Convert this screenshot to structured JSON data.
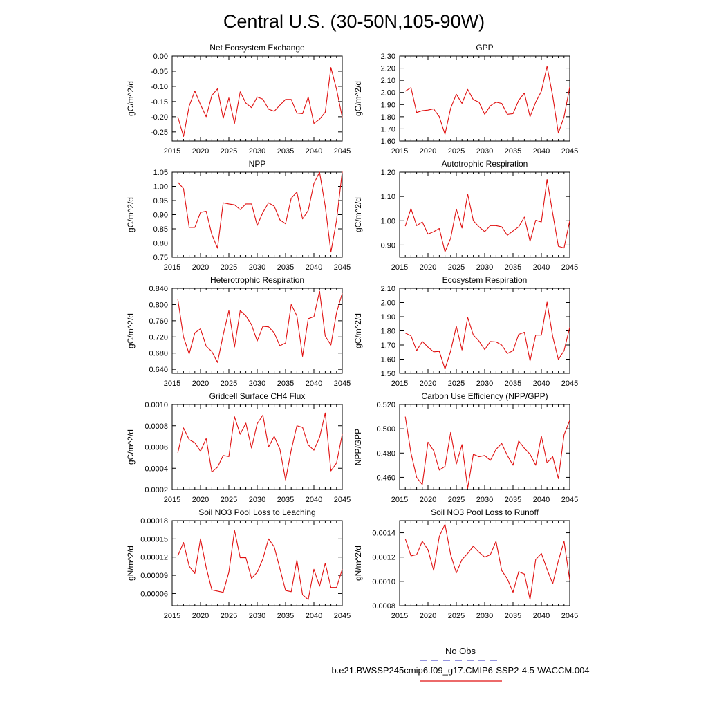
{
  "figure": {
    "title": "Central U.S. (30-50N,105-90W)",
    "legend": {
      "obs_label": "No Obs",
      "obs_color": "#5555cc",
      "case_label": "b.e21.BWSSP245cmip6.f09_g17.CMIP6-SSP2-4.5-WACCM.004",
      "case_color": "#e01010"
    }
  },
  "chart_data": [
    {
      "type": "line",
      "title": "Net Ecosystem Exchange",
      "ylabel": "gC/m^2/d",
      "x": [
        2016,
        2017,
        2018,
        2019,
        2020,
        2021,
        2022,
        2023,
        2024,
        2025,
        2026,
        2027,
        2028,
        2029,
        2030,
        2031,
        2032,
        2033,
        2034,
        2035,
        2036,
        2037,
        2038,
        2039,
        2040,
        2041,
        2042,
        2043,
        2044,
        2045
      ],
      "xlim": [
        2015,
        2045
      ],
      "xticks": [
        "2015",
        "2020",
        "2025",
        "2030",
        "2035",
        "2040",
        "2045"
      ],
      "ylim": [
        -0.28,
        0.0
      ],
      "yticks": [
        "0.00",
        "-0.05",
        "-0.10",
        "-0.15",
        "-0.20",
        "-0.25"
      ],
      "series": [
        {
          "color": "#e01010",
          "values": [
            -0.2,
            -0.265,
            -0.165,
            -0.115,
            -0.16,
            -0.2,
            -0.13,
            -0.108,
            -0.205,
            -0.138,
            -0.222,
            -0.118,
            -0.155,
            -0.17,
            -0.135,
            -0.142,
            -0.175,
            -0.182,
            -0.162,
            -0.143,
            -0.143,
            -0.188,
            -0.19,
            -0.135,
            -0.222,
            -0.208,
            -0.185,
            -0.038,
            -0.11,
            -0.202
          ]
        }
      ]
    },
    {
      "type": "line",
      "title": "GPP",
      "ylabel": "gC/m^2/d",
      "x": [
        2016,
        2017,
        2018,
        2019,
        2020,
        2021,
        2022,
        2023,
        2024,
        2025,
        2026,
        2027,
        2028,
        2029,
        2030,
        2031,
        2032,
        2033,
        2034,
        2035,
        2036,
        2037,
        2038,
        2039,
        2040,
        2041,
        2042,
        2043,
        2044,
        2045
      ],
      "xlim": [
        2015,
        2045
      ],
      "xticks": [
        "2015",
        "2020",
        "2025",
        "2030",
        "2035",
        "2040",
        "2045"
      ],
      "ylim": [
        1.6,
        2.3
      ],
      "yticks": [
        "2.30",
        "2.20",
        "2.10",
        "2.00",
        "1.90",
        "1.80",
        "1.70",
        "1.60"
      ],
      "series": [
        {
          "color": "#e01010",
          "values": [
            2.01,
            2.04,
            1.835,
            1.85,
            1.855,
            1.865,
            1.8,
            1.655,
            1.87,
            1.985,
            1.91,
            2.025,
            1.94,
            1.92,
            1.82,
            1.89,
            1.92,
            1.91,
            1.82,
            1.825,
            1.935,
            1.995,
            1.8,
            1.92,
            2.01,
            2.215,
            1.97,
            1.665,
            1.8,
            2.045
          ]
        }
      ]
    },
    {
      "type": "line",
      "title": "NPP",
      "ylabel": "gC/m^2/d",
      "x": [
        2016,
        2017,
        2018,
        2019,
        2020,
        2021,
        2022,
        2023,
        2024,
        2025,
        2026,
        2027,
        2028,
        2029,
        2030,
        2031,
        2032,
        2033,
        2034,
        2035,
        2036,
        2037,
        2038,
        2039,
        2040,
        2041,
        2042,
        2043,
        2044,
        2045
      ],
      "xlim": [
        2015,
        2045
      ],
      "xticks": [
        "2015",
        "2020",
        "2025",
        "2030",
        "2035",
        "2040",
        "2045"
      ],
      "ylim": [
        0.75,
        1.05
      ],
      "yticks": [
        "1.05",
        "1.00",
        "0.95",
        "0.90",
        "0.85",
        "0.80",
        "0.75"
      ],
      "series": [
        {
          "color": "#e01010",
          "values": [
            1.015,
            0.992,
            0.855,
            0.855,
            0.908,
            0.912,
            0.83,
            0.782,
            0.942,
            0.938,
            0.935,
            0.918,
            0.938,
            0.938,
            0.862,
            0.908,
            0.942,
            0.93,
            0.882,
            0.868,
            0.958,
            0.98,
            0.885,
            0.915,
            1.01,
            1.05,
            0.93,
            0.768,
            0.88,
            1.052
          ]
        }
      ]
    },
    {
      "type": "line",
      "title": "Autotrophic Respiration",
      "ylabel": "gC/m^2/d",
      "x": [
        2016,
        2017,
        2018,
        2019,
        2020,
        2021,
        2022,
        2023,
        2024,
        2025,
        2026,
        2027,
        2028,
        2029,
        2030,
        2031,
        2032,
        2033,
        2034,
        2035,
        2036,
        2037,
        2038,
        2039,
        2040,
        2041,
        2042,
        2043,
        2044,
        2045
      ],
      "xlim": [
        2015,
        2045
      ],
      "xticks": [
        "2015",
        "2020",
        "2025",
        "2030",
        "2035",
        "2040",
        "2045"
      ],
      "ylim": [
        0.85,
        1.2
      ],
      "yticks": [
        "1.20",
        "1.10",
        "1.00",
        "0.90"
      ],
      "series": [
        {
          "color": "#e01010",
          "values": [
            0.978,
            1.05,
            0.98,
            0.995,
            0.945,
            0.955,
            0.968,
            0.872,
            0.928,
            1.048,
            0.97,
            1.11,
            1.0,
            0.975,
            0.955,
            0.98,
            0.98,
            0.975,
            0.94,
            0.958,
            0.975,
            1.015,
            0.915,
            1.002,
            0.995,
            1.17,
            1.03,
            0.895,
            0.888,
            1.0
          ]
        }
      ]
    },
    {
      "type": "line",
      "title": "Heterotrophic Respiration",
      "ylabel": "gC/m^2/d",
      "x": [
        2016,
        2017,
        2018,
        2019,
        2020,
        2021,
        2022,
        2023,
        2024,
        2025,
        2026,
        2027,
        2028,
        2029,
        2030,
        2031,
        2032,
        2033,
        2034,
        2035,
        2036,
        2037,
        2038,
        2039,
        2040,
        2041,
        2042,
        2043,
        2044,
        2045
      ],
      "xlim": [
        2015,
        2045
      ],
      "xticks": [
        "2015",
        "2020",
        "2025",
        "2030",
        "2035",
        "2040",
        "2045"
      ],
      "ylim": [
        0.63,
        0.84
      ],
      "yticks": [
        "0.840",
        "0.800",
        "0.760",
        "0.720",
        "0.680",
        "0.640"
      ],
      "series": [
        {
          "color": "#e01010",
          "values": [
            0.813,
            0.72,
            0.678,
            0.73,
            0.74,
            0.697,
            0.684,
            0.657,
            0.725,
            0.785,
            0.695,
            0.785,
            0.772,
            0.75,
            0.71,
            0.746,
            0.745,
            0.73,
            0.698,
            0.705,
            0.8,
            0.772,
            0.672,
            0.765,
            0.77,
            0.833,
            0.722,
            0.7,
            0.78,
            0.828
          ]
        }
      ]
    },
    {
      "type": "line",
      "title": "Ecosystem Respiration",
      "ylabel": "gC/m^2/d",
      "x": [
        2016,
        2017,
        2018,
        2019,
        2020,
        2021,
        2022,
        2023,
        2024,
        2025,
        2026,
        2027,
        2028,
        2029,
        2030,
        2031,
        2032,
        2033,
        2034,
        2035,
        2036,
        2037,
        2038,
        2039,
        2040,
        2041,
        2042,
        2043,
        2044,
        2045
      ],
      "xlim": [
        2015,
        2045
      ],
      "xticks": [
        "2015",
        "2020",
        "2025",
        "2030",
        "2035",
        "2040",
        "2045"
      ],
      "ylim": [
        1.5,
        2.1
      ],
      "yticks": [
        "2.10",
        "2.00",
        "1.90",
        "1.80",
        "1.70",
        "1.60",
        "1.50"
      ],
      "series": [
        {
          "color": "#e01010",
          "values": [
            1.785,
            1.765,
            1.66,
            1.725,
            1.685,
            1.652,
            1.655,
            1.53,
            1.658,
            1.832,
            1.665,
            1.895,
            1.77,
            1.728,
            1.668,
            1.725,
            1.722,
            1.7,
            1.64,
            1.66,
            1.775,
            1.79,
            1.588,
            1.77,
            1.77,
            2.002,
            1.76,
            1.598,
            1.66,
            1.825
          ]
        }
      ]
    },
    {
      "type": "line",
      "title": "Gridcell Surface CH4 Flux",
      "ylabel": "gC/m^2/d",
      "x": [
        2016,
        2017,
        2018,
        2019,
        2020,
        2021,
        2022,
        2023,
        2024,
        2025,
        2026,
        2027,
        2028,
        2029,
        2030,
        2031,
        2032,
        2033,
        2034,
        2035,
        2036,
        2037,
        2038,
        2039,
        2040,
        2041,
        2042,
        2043,
        2044,
        2045
      ],
      "xlim": [
        2015,
        2045
      ],
      "xticks": [
        "2015",
        "2020",
        "2025",
        "2030",
        "2035",
        "2040",
        "2045"
      ],
      "ylim": [
        0.0002,
        0.001
      ],
      "yticks": [
        "0.0010",
        "0.0008",
        "0.0006",
        "0.0004",
        "0.0002"
      ],
      "series": [
        {
          "color": "#e01010",
          "values": [
            0.000545,
            0.00078,
            0.00067,
            0.00064,
            0.00056,
            0.00068,
            0.000365,
            0.00041,
            0.00052,
            0.00051,
            0.000885,
            0.00072,
            0.000825,
            0.00059,
            0.00082,
            0.0009,
            0.0006,
            0.0007,
            0.00058,
            0.00029,
            0.00057,
            0.0008,
            0.000785,
            0.00062,
            0.00057,
            0.00069,
            0.00092,
            0.000375,
            0.00045,
            0.00072
          ]
        }
      ]
    },
    {
      "type": "line",
      "title": "Carbon Use Efficiency (NPP/GPP)",
      "ylabel": "NPP/GPP",
      "x": [
        2016,
        2017,
        2018,
        2019,
        2020,
        2021,
        2022,
        2023,
        2024,
        2025,
        2026,
        2027,
        2028,
        2029,
        2030,
        2031,
        2032,
        2033,
        2034,
        2035,
        2036,
        2037,
        2038,
        2039,
        2040,
        2041,
        2042,
        2043,
        2044,
        2045
      ],
      "xlim": [
        2015,
        2045
      ],
      "xticks": [
        "2015",
        "2020",
        "2025",
        "2030",
        "2035",
        "2040",
        "2045"
      ],
      "ylim": [
        0.45,
        0.52
      ],
      "yticks": [
        "0.520",
        "0.500",
        "0.480",
        "0.460"
      ],
      "series": [
        {
          "color": "#e01010",
          "values": [
            0.51,
            0.48,
            0.46,
            0.454,
            0.489,
            0.482,
            0.466,
            0.469,
            0.497,
            0.471,
            0.487,
            0.451,
            0.479,
            0.477,
            0.478,
            0.474,
            0.483,
            0.488,
            0.478,
            0.47,
            0.49,
            0.484,
            0.479,
            0.47,
            0.494,
            0.472,
            0.477,
            0.459,
            0.495,
            0.507
          ]
        }
      ]
    },
    {
      "type": "line",
      "title": "Soil NO3 Pool Loss to Leaching",
      "ylabel": "gN/m^2/d",
      "x": [
        2016,
        2017,
        2018,
        2019,
        2020,
        2021,
        2022,
        2023,
        2024,
        2025,
        2026,
        2027,
        2028,
        2029,
        2030,
        2031,
        2032,
        2033,
        2034,
        2035,
        2036,
        2037,
        2038,
        2039,
        2040,
        2041,
        2042,
        2043,
        2044,
        2045
      ],
      "xlim": [
        2015,
        2045
      ],
      "xticks": [
        "2015",
        "2020",
        "2025",
        "2030",
        "2035",
        "2040",
        "2045"
      ],
      "ylim": [
        4e-05,
        0.00018
      ],
      "yticks": [
        "0.00018",
        "0.00015",
        "0.00012",
        "0.00009",
        "0.00006"
      ],
      "series": [
        {
          "color": "#e01010",
          "values": [
            0.000122,
            0.000144,
            0.000105,
            9.3e-05,
            0.00015,
            0.000103,
            6.6e-05,
            6.4e-05,
            6.2e-05,
            9.5e-05,
            0.000164,
            0.000119,
            0.000119,
            8.5e-05,
            9.5e-05,
            0.000117,
            0.00015,
            0.000137,
            0.000101,
            6.5e-05,
            6.3e-05,
            0.000115,
            5.8e-05,
            5e-05,
            0.0001,
            7.2e-05,
            0.00011,
            7e-05,
            7e-05,
            0.0001
          ]
        }
      ]
    },
    {
      "type": "line",
      "title": "Soil NO3 Pool Loss to Runoff",
      "ylabel": "gN/m^2/d",
      "x": [
        2016,
        2017,
        2018,
        2019,
        2020,
        2021,
        2022,
        2023,
        2024,
        2025,
        2026,
        2027,
        2028,
        2029,
        2030,
        2031,
        2032,
        2033,
        2034,
        2035,
        2036,
        2037,
        2038,
        2039,
        2040,
        2041,
        2042,
        2043,
        2044,
        2045
      ],
      "xlim": [
        2015,
        2045
      ],
      "xticks": [
        "2015",
        "2020",
        "2025",
        "2030",
        "2035",
        "2040",
        "2045"
      ],
      "ylim": [
        0.0008,
        0.0015
      ],
      "yticks": [
        "0.0014",
        "0.0012",
        "0.0010",
        "0.0008"
      ],
      "series": [
        {
          "color": "#e01010",
          "values": [
            0.00135,
            0.00121,
            0.00122,
            0.00133,
            0.00126,
            0.00109,
            0.00137,
            0.00147,
            0.00122,
            0.00107,
            0.00118,
            0.00123,
            0.00129,
            0.00124,
            0.0012,
            0.00122,
            0.00133,
            0.00109,
            0.00102,
            0.00091,
            0.00108,
            0.00106,
            0.00085,
            0.00118,
            0.00123,
            0.0011,
            0.00098,
            0.00117,
            0.00133,
            0.00101
          ]
        }
      ]
    }
  ]
}
